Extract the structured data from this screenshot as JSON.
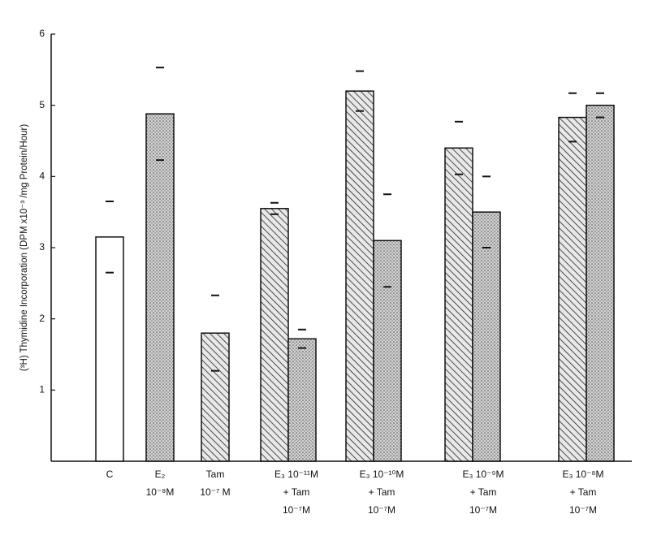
{
  "chart_data": {
    "type": "bar",
    "y_label": "(³H) Thymidine Incorporation (DPM x10⁻³ /mg Protein/Hour)",
    "categories": [
      [
        "C"
      ],
      [
        "E₂",
        "10⁻⁸M"
      ],
      [
        "Tam",
        "10⁻⁷ M"
      ],
      [
        "E₃ 10⁻¹¹M",
        "+ Tam",
        "10⁻⁷M"
      ],
      [
        "E₃ 10⁻¹⁰M",
        "+ Tam",
        "10⁻⁷M"
      ],
      [
        "E₃ 10⁻⁹M",
        "+ Tam",
        "10⁻⁷M"
      ],
      [
        "E₃ 10⁻⁸M",
        "+ Tam",
        "10⁻⁷M"
      ]
    ],
    "series": [
      {
        "values": [
          3.15,
          4.88,
          1.8,
          3.55,
          5.2,
          4.4,
          4.83
        ],
        "errors": [
          0.5,
          0.65,
          0.53,
          0.08,
          0.28,
          0.37,
          0.34
        ],
        "patterns": [
          "open",
          "stipple",
          "hatch",
          "hatch",
          "hatch",
          "hatch",
          "hatch"
        ]
      },
      {
        "values": [
          null,
          null,
          null,
          1.72,
          3.1,
          3.5,
          5.0
        ],
        "errors": [
          null,
          null,
          null,
          0.13,
          0.65,
          0.5,
          0.17
        ],
        "patterns": [
          null,
          null,
          null,
          "stipple",
          "stipple",
          "stipple",
          "stipple"
        ]
      }
    ],
    "ylim": [
      0,
      6
    ],
    "yticks": [
      1,
      2,
      3,
      4,
      5,
      6
    ]
  }
}
